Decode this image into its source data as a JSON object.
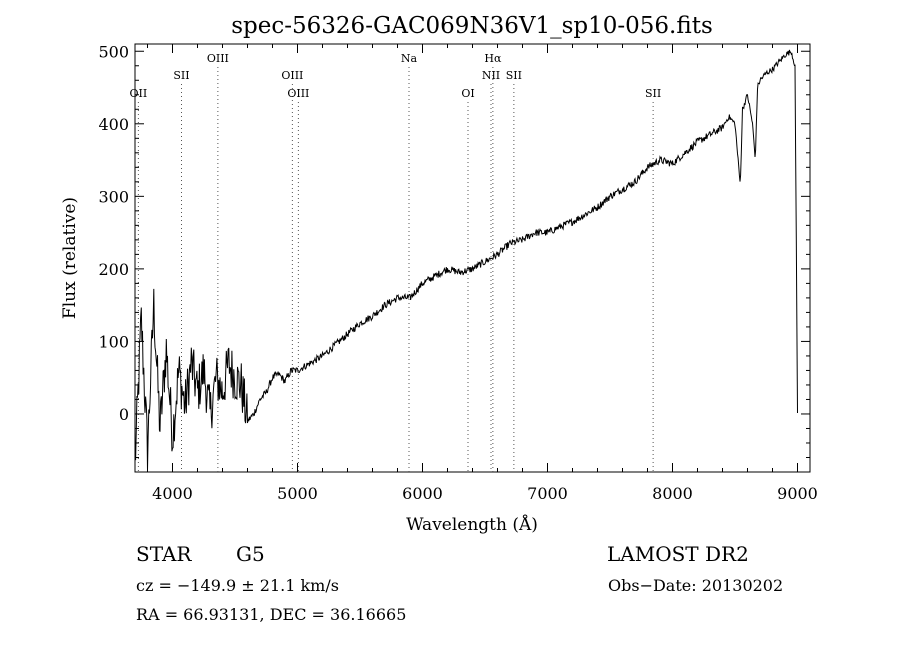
{
  "chart_data": {
    "type": "line",
    "title": "spec-56326-GAC069N36V1_sp10-056.fits",
    "xlabel": "Wavelength (Å)",
    "ylabel": "Flux (relative)",
    "xlim": [
      3700,
      9100
    ],
    "ylim": [
      -80,
      510
    ],
    "xticks": [
      4000,
      5000,
      6000,
      7000,
      8000,
      9000
    ],
    "yticks": [
      0,
      100,
      200,
      300,
      400,
      500
    ],
    "line_color": "#000000",
    "grid": false,
    "emission_lines": [
      {
        "label": "OII",
        "x": 3727,
        "row": 3
      },
      {
        "label": "SII",
        "x": 4072,
        "row": 2
      },
      {
        "label": "OIII",
        "x": 4363,
        "row": 1
      },
      {
        "label": "OIII",
        "x": 4959,
        "row": 2
      },
      {
        "label": "OIII",
        "x": 5007,
        "row": 3
      },
      {
        "label": "Na",
        "x": 5892,
        "row": 1
      },
      {
        "label": "OI",
        "x": 6364,
        "row": 3
      },
      {
        "label": "Hα",
        "x": 6563,
        "row": 1
      },
      {
        "label": "NII",
        "x": 6548,
        "row": 2
      },
      {
        "label": "SII",
        "x": 6731,
        "row": 2
      },
      {
        "label": "SII",
        "x": 7845,
        "row": 3
      }
    ],
    "series": [
      {
        "x": [
          3700,
          3750,
          3800,
          3850,
          3900,
          3950,
          4000,
          4050,
          4100,
          4150,
          4200,
          4250,
          4300,
          4350,
          4400,
          4450,
          4500,
          4550,
          4600,
          4650,
          4700,
          4750,
          4800,
          4850,
          4900,
          4950,
          5000,
          5100,
          5200,
          5300,
          5400,
          5500,
          5600,
          5700,
          5800,
          5900,
          6000,
          6100,
          6200,
          6300,
          6400,
          6500,
          6600,
          6700,
          6800,
          6900,
          7000,
          7100,
          7200,
          7300,
          7400,
          7500,
          7600,
          7700,
          7800,
          7900,
          8000,
          8100,
          8200,
          8300,
          8400,
          8450,
          8500,
          8542,
          8560,
          8600,
          8640,
          8662,
          8680,
          8700,
          8750,
          8800,
          8850,
          8900,
          8950,
          8980,
          9000
        ],
        "values": [
          -70,
          130,
          -50,
          150,
          -20,
          90,
          -30,
          60,
          10,
          70,
          30,
          60,
          0,
          50,
          30,
          70,
          50,
          40,
          -10,
          0,
          20,
          30,
          50,
          55,
          45,
          60,
          60,
          70,
          80,
          95,
          110,
          125,
          135,
          150,
          160,
          160,
          180,
          190,
          200,
          195,
          200,
          210,
          220,
          235,
          240,
          250,
          250,
          258,
          265,
          275,
          285,
          300,
          310,
          320,
          340,
          350,
          345,
          360,
          375,
          385,
          395,
          410,
          400,
          315,
          420,
          440,
          400,
          350,
          450,
          460,
          470,
          475,
          485,
          495,
          500,
          480,
          0
        ]
      }
    ]
  },
  "footer": {
    "object_type": "STAR",
    "subclass": "G5",
    "cz": "cz = −149.9 ± 21.1 km/s",
    "coords": "RA =  66.93131, DEC =  36.16665",
    "survey": "LAMOST DR2",
    "obs_date": "Obs−Date: 20130202"
  }
}
